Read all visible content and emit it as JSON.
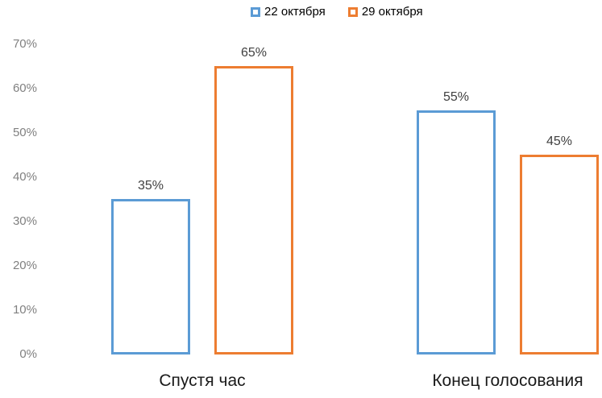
{
  "chart_data": {
    "type": "bar",
    "title": "",
    "categories": [
      "Спустя час",
      "Конец голосования"
    ],
    "series": [
      {
        "name": "22 октября",
        "color": "#5B9BD5",
        "values": [
          35,
          55
        ],
        "data_labels": [
          "35%",
          "55%"
        ]
      },
      {
        "name": "29 октября",
        "color": "#ED7D31",
        "values": [
          65,
          45
        ],
        "data_labels": [
          "65%",
          "45%"
        ]
      }
    ],
    "y_axis": {
      "min": 0,
      "max": 70,
      "step": 10,
      "unit": "%",
      "tick_labels": [
        "0%",
        "10%",
        "20%",
        "30%",
        "40%",
        "50%",
        "60%",
        "70%"
      ]
    },
    "xlabel": "",
    "ylabel": "",
    "legend_position": "top-center",
    "gridlines": false,
    "bar_style": "outlined",
    "colors": {
      "series_blue": "#5B9BD5",
      "series_orange": "#ED7D31",
      "axis_tick_label": "#808080",
      "data_label": "#404040",
      "category_label": "#1a1a1a",
      "legend_text": "#000000",
      "background": "#ffffff"
    }
  }
}
